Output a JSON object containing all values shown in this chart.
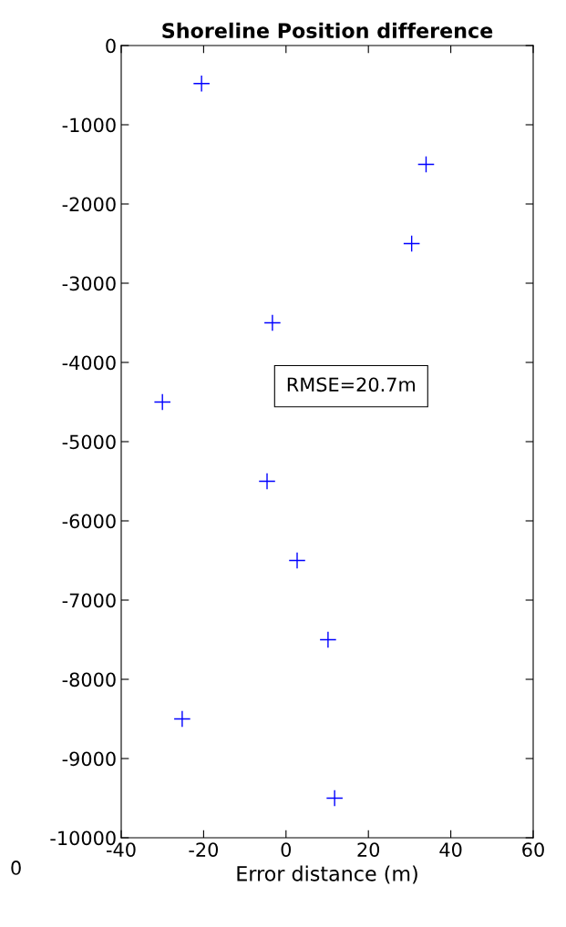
{
  "chart_data": {
    "type": "scatter",
    "title": "Shoreline Position difference",
    "xlabel": "Error distance (m)",
    "x": [
      -20.5,
      34,
      30.5,
      -3.3,
      -30,
      -4.6,
      2.7,
      10.2,
      -25.2,
      11.8
    ],
    "series": [
      {
        "color": "#0000ff",
        "values": [
          -480,
          -1500,
          -2500,
          -3500,
          -4500,
          -5500,
          -6500,
          -7500,
          -8500,
          -9500
        ]
      }
    ],
    "xlim": [
      -40,
      60
    ],
    "xticks": [
      -40,
      -20,
      0,
      20,
      40,
      60
    ],
    "ylim": [
      -10000,
      0
    ],
    "yticks": [
      -10000,
      -9000,
      -8000,
      -7000,
      -6000,
      -5000,
      -4000,
      -3000,
      -2000,
      -1000,
      0
    ],
    "marker": "cross",
    "grid": false,
    "legend": false,
    "annotations": [
      "RMSE=20.7m",
      "0"
    ]
  }
}
